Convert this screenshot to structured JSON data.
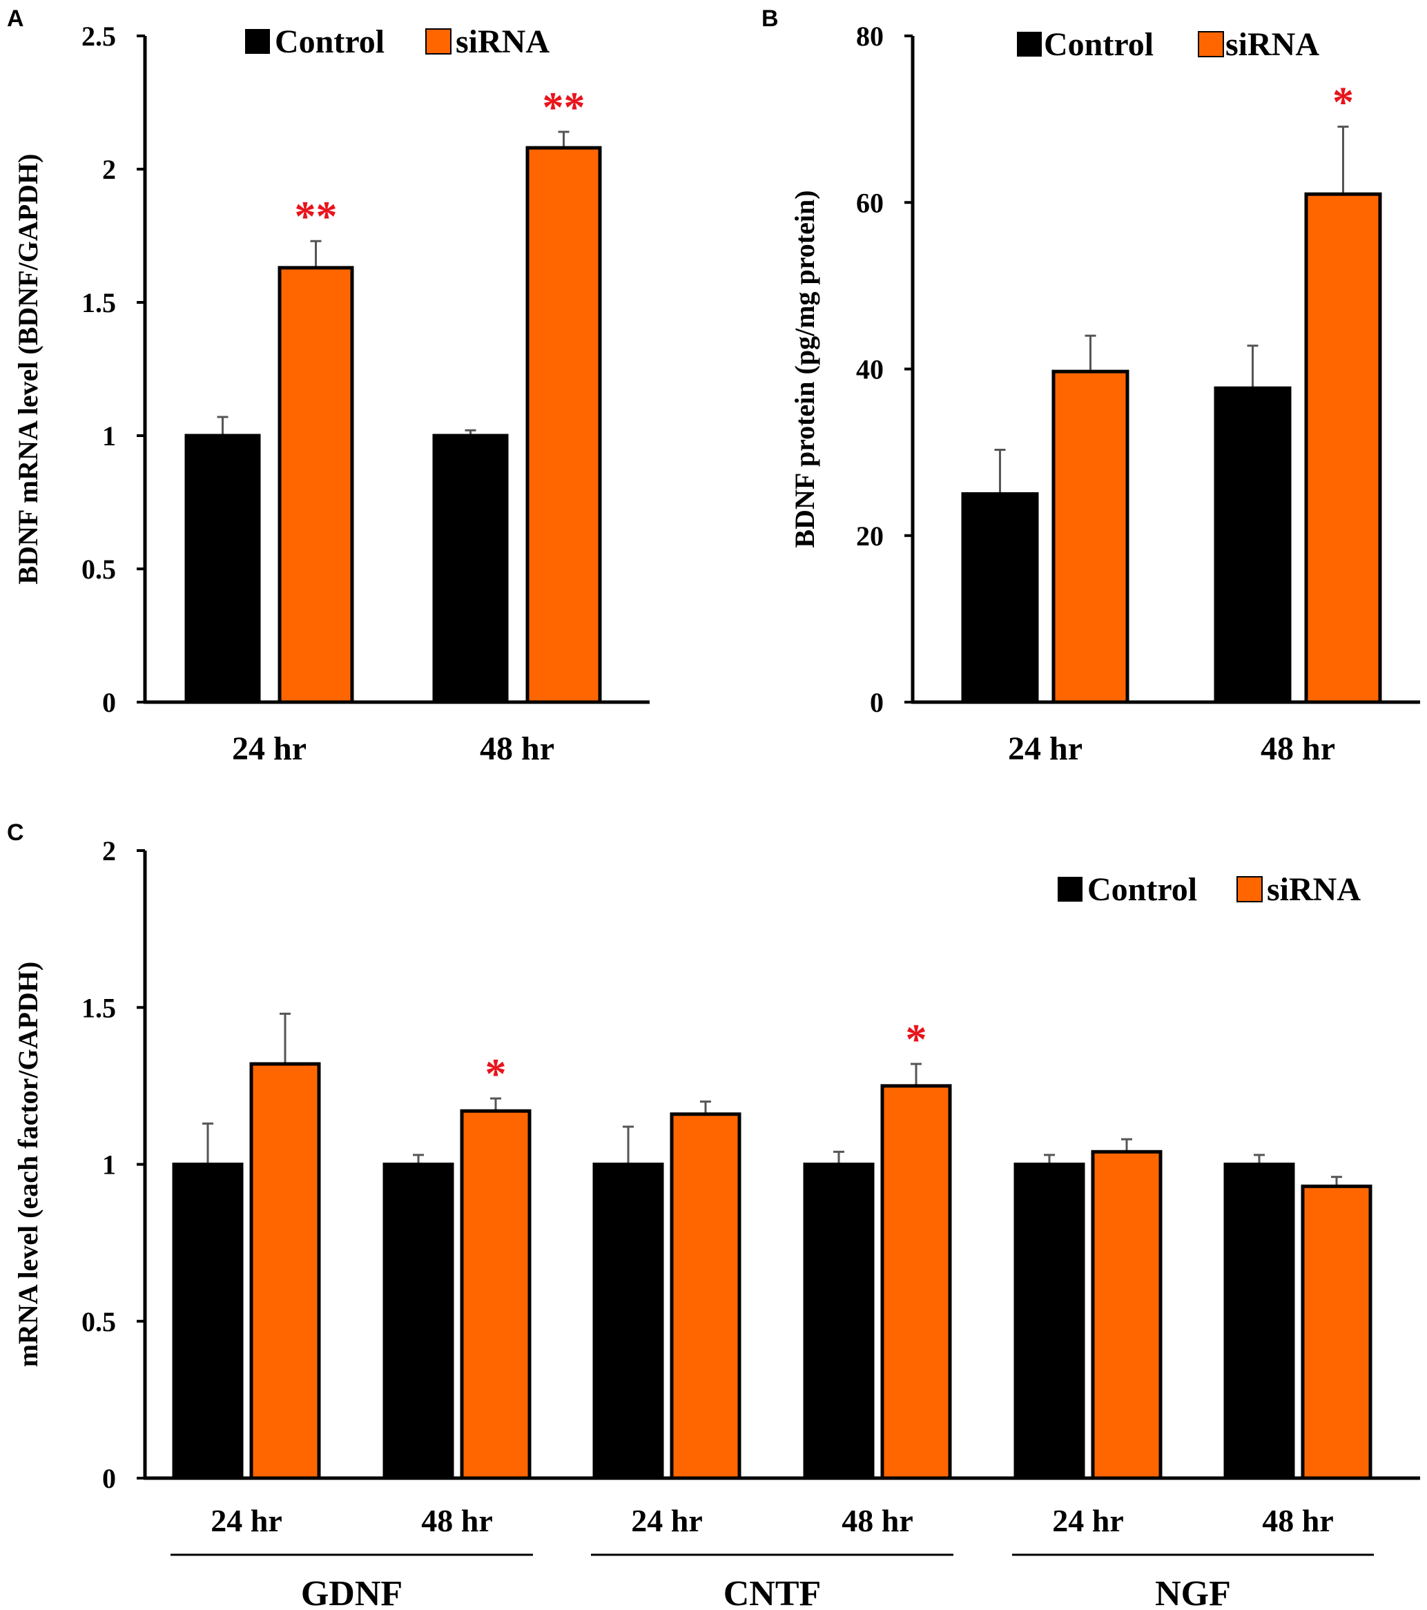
{
  "colors": {
    "control": "#000000",
    "sirna": "#ff6600",
    "significance": "#e8141c",
    "axis": "#000000"
  },
  "chart_data": [
    {
      "panel": "A",
      "type": "bar",
      "ylabel": "BDNF mRNA level (BDNF/GAPDH)",
      "ylim": [
        0,
        2.5
      ],
      "yticks": [
        0,
        0.5,
        1,
        1.5,
        2,
        2.5
      ],
      "ytick_labels": [
        "0",
        "0.5",
        "1",
        "1.5",
        "2",
        "2.5"
      ],
      "categories": [
        "24 hr",
        "48 hr"
      ],
      "legend": [
        "Control",
        "siRNA"
      ],
      "series": [
        {
          "name": "Control",
          "values": [
            1.0,
            1.0
          ],
          "errors": [
            0.07,
            0.02
          ]
        },
        {
          "name": "siRNA",
          "values": [
            1.63,
            2.08
          ],
          "errors": [
            0.1,
            0.06
          ]
        }
      ],
      "significance": [
        {
          "category": 0,
          "series": 1,
          "label": "**"
        },
        {
          "category": 1,
          "series": 1,
          "label": "**"
        }
      ]
    },
    {
      "panel": "B",
      "type": "bar",
      "ylabel": "BDNF protein (pg/mg protein)",
      "ylim": [
        0,
        80
      ],
      "yticks": [
        0,
        20,
        40,
        60,
        80
      ],
      "ytick_labels": [
        "0",
        "20",
        "40",
        "60",
        "80"
      ],
      "categories": [
        "24 hr",
        "48 hr"
      ],
      "legend": [
        "Control",
        "siRNA"
      ],
      "series": [
        {
          "name": "Control",
          "values": [
            25.0,
            37.7
          ],
          "errors": [
            5.3,
            5.1
          ]
        },
        {
          "name": "siRNA",
          "values": [
            39.7,
            61.0
          ],
          "errors": [
            4.3,
            8.1
          ]
        }
      ],
      "significance": [
        {
          "category": 1,
          "series": 1,
          "label": "*"
        }
      ]
    },
    {
      "panel": "C",
      "type": "bar",
      "ylabel": "mRNA level (each factor/GAPDH)",
      "ylim": [
        0,
        2
      ],
      "yticks": [
        0,
        0.5,
        1,
        1.5,
        2
      ],
      "ytick_labels": [
        "0",
        "0.5",
        "1",
        "1.5",
        "2"
      ],
      "categories": [
        "24 hr",
        "48 hr",
        "24 hr",
        "48 hr",
        "24 hr",
        "48 hr"
      ],
      "groups": [
        {
          "label": "GDNF",
          "categories": [
            0,
            1
          ]
        },
        {
          "label": "CNTF",
          "categories": [
            2,
            3
          ]
        },
        {
          "label": "NGF",
          "categories": [
            4,
            5
          ]
        }
      ],
      "legend": [
        "Control",
        "siRNA"
      ],
      "series": [
        {
          "name": "Control",
          "values": [
            1.0,
            1.0,
            1.0,
            1.0,
            1.0,
            1.0
          ],
          "errors": [
            0.13,
            0.03,
            0.12,
            0.04,
            0.03,
            0.03
          ]
        },
        {
          "name": "siRNA",
          "values": [
            1.32,
            1.17,
            1.16,
            1.25,
            1.04,
            0.93
          ],
          "errors": [
            0.16,
            0.04,
            0.04,
            0.07,
            0.04,
            0.03
          ]
        }
      ],
      "significance": [
        {
          "category": 1,
          "series": 1,
          "label": "*"
        },
        {
          "category": 3,
          "series": 1,
          "label": "*"
        }
      ]
    }
  ]
}
